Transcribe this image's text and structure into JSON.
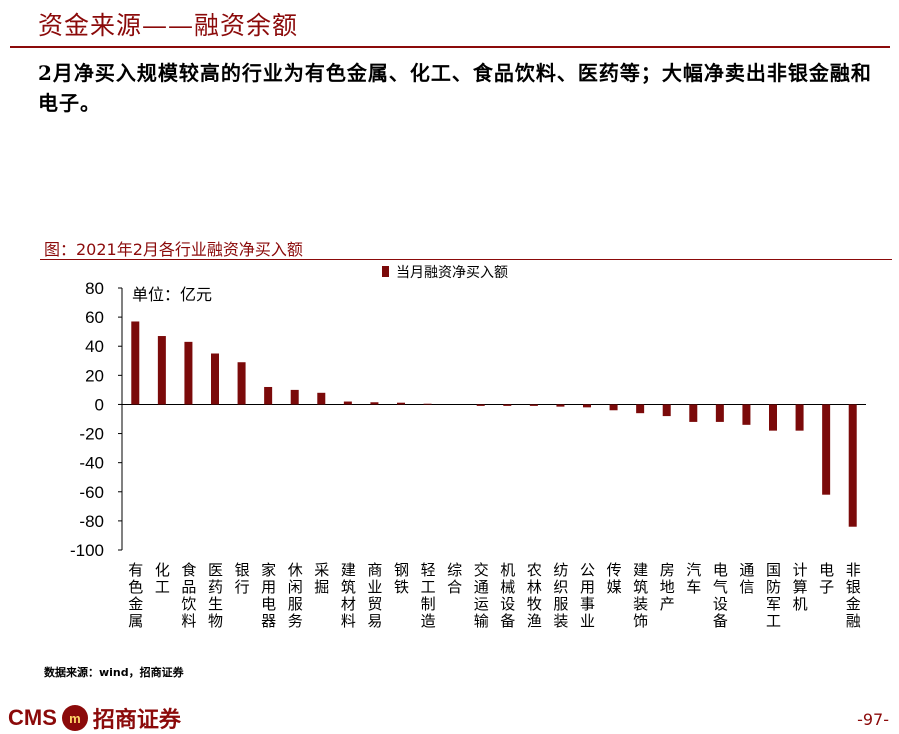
{
  "header": {
    "title": "资金来源——融资余额",
    "summary": "2月净买入规模较高的行业为有色金属、化工、食品饮料、医药等；大幅净卖出非银金融和电子。"
  },
  "figure": {
    "title": "图：2021年2月各行业融资净买入额",
    "unit_label": "单位：亿元",
    "source": "数据来源：wind，招商证券"
  },
  "chart_data": {
    "type": "bar",
    "categories": [
      "有色金属",
      "化工",
      "食品饮料",
      "医药生物",
      "银行",
      "家用电器",
      "休闲服务",
      "采掘",
      "建筑材料",
      "商业贸易",
      "钢铁",
      "轻工制造",
      "综合",
      "交通运输",
      "机械设备",
      "农林牧渔",
      "纺织服装",
      "公用事业",
      "传媒",
      "建筑装饰",
      "房地产",
      "汽车",
      "电气设备",
      "通信",
      "国防军工",
      "计算机",
      "电子",
      "非银金融"
    ],
    "series": [
      {
        "name": "当月融资净买入额",
        "values": [
          57,
          47,
          43,
          35,
          29,
          12,
          10,
          8,
          2,
          1.5,
          1.2,
          0.5,
          0,
          -1,
          -1,
          -1,
          -1.5,
          -2,
          -4,
          -6,
          -8,
          -12,
          -12,
          -14,
          -18,
          -18,
          -62,
          -84
        ]
      }
    ],
    "ylim": [
      -100,
      80
    ],
    "yticks": [
      80,
      60,
      40,
      20,
      0,
      -20,
      -40,
      -60,
      -80,
      -100
    ],
    "legend_position": "top",
    "bar_color": "#7b0a0a"
  },
  "footer": {
    "logo_text": "CMS",
    "logo_mark": "m",
    "logo_cn": "招商证券",
    "page": "-97-"
  }
}
